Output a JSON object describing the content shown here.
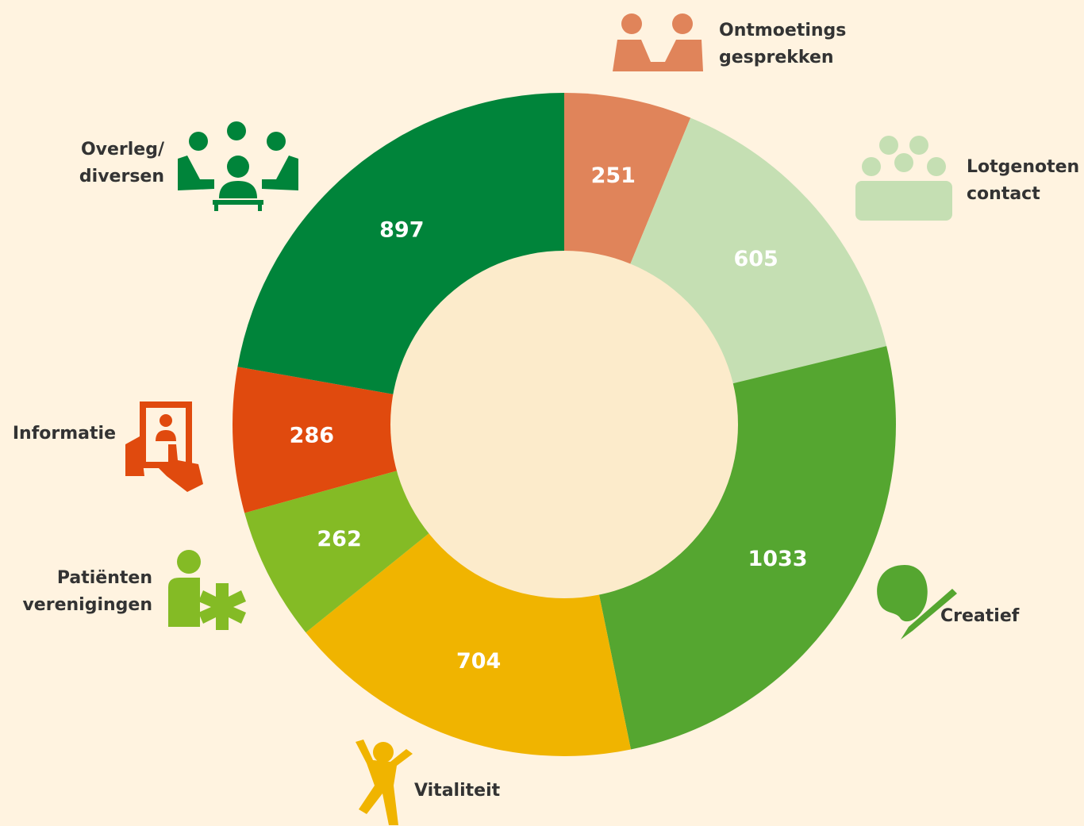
{
  "chart_data": {
    "type": "donut",
    "categories": [
      "Ontmoetings\ngesprekken",
      "Lotgenoten\ncontact",
      "Creatief",
      "Vitaliteit",
      "Patiënten\nverenigingen",
      "Informatie",
      "Overleg/\ndiversen"
    ],
    "values": [
      251,
      605,
      1033,
      704,
      262,
      286,
      897
    ],
    "colors": [
      "#e0845a",
      "#c5dfb3",
      "#55a630",
      "#f0b400",
      "#84bb25",
      "#e04a0e",
      "#00843a"
    ]
  }
}
